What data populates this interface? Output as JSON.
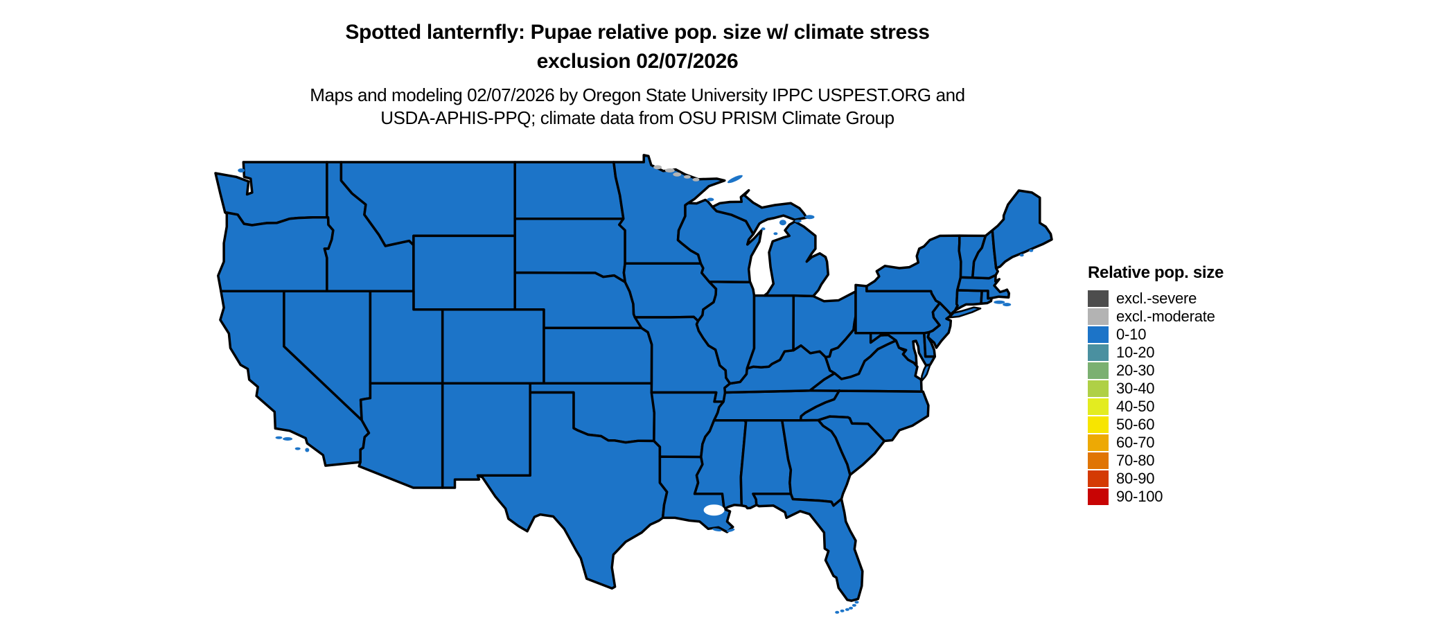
{
  "title": {
    "line1": "Spotted lanternfly: Pupae relative pop. size w/ climate stress",
    "line2": "exclusion 02/07/2026"
  },
  "subtitle": {
    "line1": "Maps and modeling 02/07/2026 by Oregon State University IPPC USPEST.ORG and",
    "line2": "USDA-APHIS-PPQ; climate data from OSU PRISM Climate Group"
  },
  "legend": {
    "title": "Relative pop. size",
    "items": [
      {
        "label": "excl.-severe",
        "color": "#4D4D4D"
      },
      {
        "label": "excl.-moderate",
        "color": "#B3B3B3"
      },
      {
        "label": "0-10",
        "color": "#1C74C8"
      },
      {
        "label": "10-20",
        "color": "#4A90A0"
      },
      {
        "label": "20-30",
        "color": "#7BB071"
      },
      {
        "label": "30-40",
        "color": "#AFD046"
      },
      {
        "label": "40-50",
        "color": "#E3EC20"
      },
      {
        "label": "50-60",
        "color": "#F7E500"
      },
      {
        "label": "60-70",
        "color": "#EDA904"
      },
      {
        "label": "70-80",
        "color": "#E07504"
      },
      {
        "label": "80-90",
        "color": "#D43A04"
      },
      {
        "label": "90-100",
        "color": "#C80404"
      }
    ]
  },
  "map": {
    "region": "Contiguous United States",
    "state_fill_color": "#1C74C8",
    "border_color": "#000000",
    "water_color": "#FFFFFF",
    "excluded_patch_color": "#B3B3B3",
    "all_states_category": "0-10"
  },
  "chart_data": {
    "type": "choropleth-map",
    "title": "Spotted lanternfly: Pupae relative pop. size w/ climate stress exclusion 02/07/2026",
    "legend_title": "Relative pop. size",
    "categories": [
      "excl.-severe",
      "excl.-moderate",
      "0-10",
      "10-20",
      "20-30",
      "30-40",
      "40-50",
      "50-60",
      "60-70",
      "70-80",
      "80-90",
      "90-100"
    ],
    "category_colors": [
      "#4D4D4D",
      "#B3B3B3",
      "#1C74C8",
      "#4A90A0",
      "#7BB071",
      "#AFD046",
      "#E3EC20",
      "#F7E500",
      "#EDA904",
      "#E07504",
      "#D43A04",
      "#C80404"
    ],
    "observation": "All contiguous U.S. states shown in the 0-10 relative population size class; small excl.-moderate (gray) patches along the northern Minnesota border lakes"
  }
}
